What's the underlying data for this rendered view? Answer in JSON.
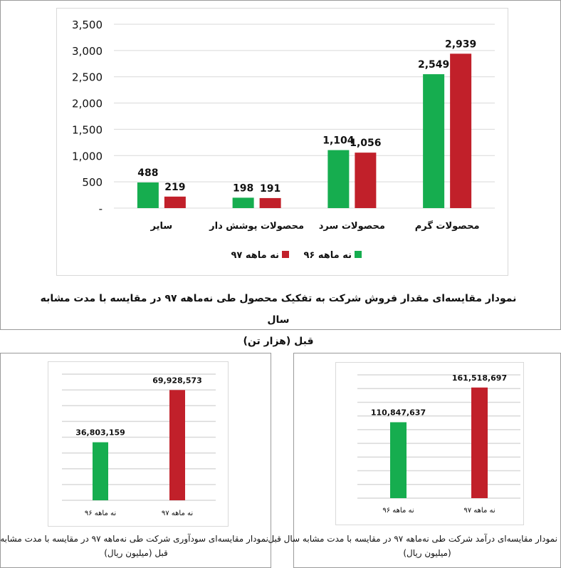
{
  "colors": {
    "y96": "#16ad4f",
    "y97": "#c1202a",
    "grid": "#d9d9d9"
  },
  "chart_data": [
    {
      "type": "bar",
      "categories": [
        "سایر",
        "محصولات پوشش دار",
        "محصولات سرد",
        "محصولات گرم"
      ],
      "series": [
        {
          "name": "نه ماهه ۹۶",
          "values": [
            488,
            198,
            1104,
            2549
          ]
        },
        {
          "name": "نه ماهه ۹۷",
          "values": [
            219,
            191,
            1056,
            2939
          ]
        }
      ],
      "data_labels": [
        [
          "488",
          "198",
          "1,104",
          "2,549"
        ],
        [
          "219",
          "191",
          "1,056",
          "2,939"
        ]
      ],
      "yticks": [
        "-",
        "500",
        "1,000",
        "1,500",
        "2,000",
        "2,500",
        "3,000",
        "3,500"
      ],
      "ylim": [
        0,
        3500
      ],
      "grid": true,
      "legend": "bottom",
      "caption_line1": "نمودار مقایسه‌ای مقدار فروش شرکت به تفکیک محصول طی نه‌ماهه ۹۷ در مقایسه با مدت مشابه سال",
      "caption_line2": "قبل (هزار تن)"
    },
    {
      "type": "bar",
      "categories": [
        "نه ماهه ۹۶",
        "نه ماهه ۹۷"
      ],
      "values": [
        36803159,
        69928573
      ],
      "data_labels": [
        "36,803,159",
        "69,928,573"
      ],
      "ylim": [
        0,
        80000000
      ],
      "grid": true,
      "caption_line1": "نمودار مقایسه‌ای سودآوری شرکت طی نه‌ماهه ۹۷ در مقایسه با مدت مشابه سال",
      "caption_line2": "قبل (میلیون ریال)"
    },
    {
      "type": "bar",
      "categories": [
        "نه ماهه ۹۶",
        "نه ماهه ۹۷"
      ],
      "values": [
        110847637,
        161518697
      ],
      "data_labels": [
        "110,847,637",
        "161,518,697"
      ],
      "ylim": [
        0,
        180000000
      ],
      "grid": true,
      "caption_line1": "نمودار مقایسه‌ای درآمد شرکت طی نه‌ماهه ۹۷ در مقایسه با مدت مشابه سال قبل",
      "caption_line2": "(میلیون ریال)"
    }
  ]
}
